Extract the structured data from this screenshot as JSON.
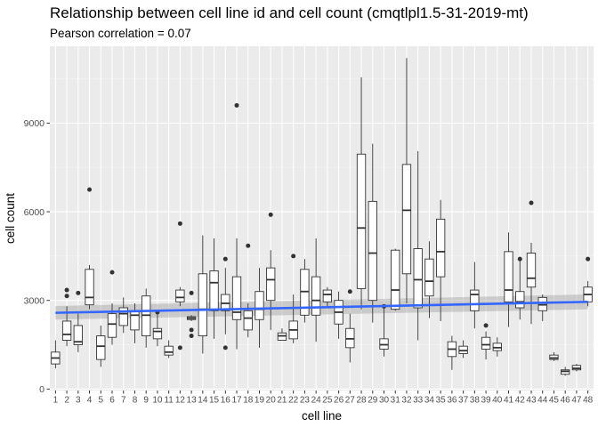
{
  "title": "Relationship between cell line id and cell count (cmqtlpl1.5-31-2019-mt)",
  "subtitle": "Pearson correlation = 0.07",
  "chart_data": {
    "type": "boxplot",
    "title": "Relationship between cell line id and cell count (cmqtlpl1.5-31-2019-mt)",
    "subtitle": "Pearson correlation = 0.07",
    "xlabel": "cell line",
    "ylabel": "cell count",
    "ylim": [
      -50,
      11600
    ],
    "y_ticks": [
      0,
      3000,
      6000,
      9000
    ],
    "grid": true,
    "panel_background": "#EBEBEB",
    "trend": {
      "method": "lm",
      "color": "#3366FF",
      "start": [
        1,
        2580
      ],
      "end": [
        48,
        2950
      ],
      "se_band": 230
    },
    "categories": [
      "1",
      "2",
      "3",
      "4",
      "5",
      "6",
      "7",
      "8",
      "9",
      "10",
      "11",
      "12",
      "13",
      "14",
      "15",
      "16",
      "17",
      "18",
      "19",
      "20",
      "21",
      "22",
      "23",
      "24",
      "25",
      "26",
      "27",
      "28",
      "29",
      "30",
      "31",
      "32",
      "33",
      "34",
      "35",
      "36",
      "37",
      "38",
      "39",
      "40",
      "41",
      "42",
      "43",
      "44",
      "45",
      "46",
      "47",
      "48"
    ],
    "boxes": [
      {
        "x": "1",
        "min": 700,
        "q1": 850,
        "median": 1050,
        "q3": 1250,
        "max": 1650,
        "outliers": []
      },
      {
        "x": "2",
        "min": 1450,
        "q1": 1650,
        "median": 1850,
        "q3": 2300,
        "max": 2800,
        "outliers": [
          3150,
          3350
        ]
      },
      {
        "x": "3",
        "min": 1250,
        "q1": 1500,
        "median": 1600,
        "q3": 2150,
        "max": 2550,
        "outliers": [
          3250
        ]
      },
      {
        "x": "4",
        "min": 2700,
        "q1": 2850,
        "median": 3100,
        "q3": 4050,
        "max": 4200,
        "outliers": [
          6750
        ]
      },
      {
        "x": "5",
        "min": 750,
        "q1": 1000,
        "median": 1450,
        "q3": 1800,
        "max": 2150,
        "outliers": []
      },
      {
        "x": "6",
        "min": 1500,
        "q1": 1750,
        "median": 2200,
        "q3": 2550,
        "max": 2900,
        "outliers": [
          3950
        ]
      },
      {
        "x": "7",
        "min": 1900,
        "q1": 2150,
        "median": 2550,
        "q3": 2750,
        "max": 3100,
        "outliers": []
      },
      {
        "x": "8",
        "min": 1550,
        "q1": 2000,
        "median": 2500,
        "q3": 2650,
        "max": 2900,
        "outliers": []
      },
      {
        "x": "9",
        "min": 1400,
        "q1": 1800,
        "median": 2500,
        "q3": 3150,
        "max": 3400,
        "outliers": []
      },
      {
        "x": "10",
        "min": 1450,
        "q1": 1700,
        "median": 1950,
        "q3": 2050,
        "max": 2600,
        "outliers": [
          2600
        ]
      },
      {
        "x": "11",
        "min": 1050,
        "q1": 1150,
        "median": 1250,
        "q3": 1450,
        "max": 1650,
        "outliers": []
      },
      {
        "x": "12",
        "min": 2800,
        "q1": 2950,
        "median": 3100,
        "q3": 3350,
        "max": 3450,
        "outliers": [
          5600,
          1400
        ]
      },
      {
        "x": "13",
        "min": 2300,
        "q1": 2350,
        "median": 2400,
        "q3": 2450,
        "max": 2500,
        "outliers": [
          3250,
          2000,
          1800
        ]
      },
      {
        "x": "14",
        "min": 1200,
        "q1": 1800,
        "median": 2700,
        "q3": 3900,
        "max": 5200,
        "outliers": []
      },
      {
        "x": "15",
        "min": 1700,
        "q1": 2650,
        "median": 3600,
        "q3": 4000,
        "max": 5100,
        "outliers": []
      },
      {
        "x": "16",
        "min": 1850,
        "q1": 2650,
        "median": 2900,
        "q3": 3200,
        "max": 4100,
        "outliers": [
          4400,
          1400
        ]
      },
      {
        "x": "17",
        "min": 1350,
        "q1": 2350,
        "median": 2600,
        "q3": 3800,
        "max": 5100,
        "outliers": [
          9600
        ]
      },
      {
        "x": "18",
        "min": 1750,
        "q1": 2000,
        "median": 2400,
        "q3": 2650,
        "max": 2900,
        "outliers": [
          4850
        ]
      },
      {
        "x": "19",
        "min": 1400,
        "q1": 2350,
        "median": 2700,
        "q3": 3300,
        "max": 4100,
        "outliers": []
      },
      {
        "x": "20",
        "min": 2000,
        "q1": 3000,
        "median": 3700,
        "q3": 4100,
        "max": 4700,
        "outliers": [
          5900
        ]
      },
      {
        "x": "21",
        "min": 1650,
        "q1": 1650,
        "median": 1800,
        "q3": 1900,
        "max": 2050,
        "outliers": []
      },
      {
        "x": "22",
        "min": 1550,
        "q1": 1700,
        "median": 2000,
        "q3": 2300,
        "max": 3200,
        "outliers": [
          4500
        ]
      },
      {
        "x": "23",
        "min": 2250,
        "q1": 2500,
        "median": 3300,
        "q3": 4050,
        "max": 4400,
        "outliers": []
      },
      {
        "x": "24",
        "min": 1600,
        "q1": 2500,
        "median": 3000,
        "q3": 3800,
        "max": 5100,
        "outliers": []
      },
      {
        "x": "25",
        "min": 2800,
        "q1": 2950,
        "median": 3200,
        "q3": 3350,
        "max": 3450,
        "outliers": []
      },
      {
        "x": "26",
        "min": 1700,
        "q1": 2200,
        "median": 2600,
        "q3": 3000,
        "max": 3300,
        "outliers": []
      },
      {
        "x": "27",
        "min": 900,
        "q1": 1400,
        "median": 1700,
        "q3": 2050,
        "max": 2550,
        "outliers": [
          3300
        ]
      },
      {
        "x": "28",
        "min": 2700,
        "q1": 3400,
        "median": 5450,
        "q3": 7950,
        "max": 10550,
        "outliers": []
      },
      {
        "x": "29",
        "min": 2250,
        "q1": 3000,
        "median": 4600,
        "q3": 6350,
        "max": 8300,
        "outliers": []
      },
      {
        "x": "30",
        "min": 1100,
        "q1": 1350,
        "median": 1500,
        "q3": 1700,
        "max": 2800,
        "outliers": [
          2800
        ]
      },
      {
        "x": "31",
        "min": 2650,
        "q1": 2700,
        "median": 3350,
        "q3": 4700,
        "max": 4750,
        "outliers": []
      },
      {
        "x": "32",
        "min": 2900,
        "q1": 3900,
        "median": 6050,
        "q3": 7600,
        "max": 11200,
        "outliers": []
      },
      {
        "x": "33",
        "min": 1650,
        "q1": 2750,
        "median": 3700,
        "q3": 4750,
        "max": 8050,
        "outliers": []
      },
      {
        "x": "34",
        "min": 2400,
        "q1": 3150,
        "median": 3650,
        "q3": 4400,
        "max": 5000,
        "outliers": []
      },
      {
        "x": "35",
        "min": 2300,
        "q1": 3800,
        "median": 4650,
        "q3": 5750,
        "max": 6400,
        "outliers": []
      },
      {
        "x": "36",
        "min": 650,
        "q1": 1100,
        "median": 1350,
        "q3": 1600,
        "max": 1800,
        "outliers": []
      },
      {
        "x": "37",
        "min": 1050,
        "q1": 1200,
        "median": 1300,
        "q3": 1450,
        "max": 1650,
        "outliers": []
      },
      {
        "x": "38",
        "min": 2050,
        "q1": 2650,
        "median": 3200,
        "q3": 3350,
        "max": 4300,
        "outliers": []
      },
      {
        "x": "39",
        "min": 1000,
        "q1": 1350,
        "median": 1500,
        "q3": 1750,
        "max": 1950,
        "outliers": [
          2150
        ]
      },
      {
        "x": "40",
        "min": 1100,
        "q1": 1300,
        "median": 1400,
        "q3": 1550,
        "max": 1750,
        "outliers": []
      },
      {
        "x": "41",
        "min": 2100,
        "q1": 2950,
        "median": 3350,
        "q3": 4650,
        "max": 5300,
        "outliers": []
      },
      {
        "x": "42",
        "min": 2350,
        "q1": 2750,
        "median": 2950,
        "q3": 3300,
        "max": 4400,
        "outliers": [
          4400
        ]
      },
      {
        "x": "43",
        "min": 2200,
        "q1": 3450,
        "median": 3750,
        "q3": 4600,
        "max": 4950,
        "outliers": [
          6300
        ]
      },
      {
        "x": "44",
        "min": 2300,
        "q1": 2650,
        "median": 2850,
        "q3": 3100,
        "max": 3200,
        "outliers": []
      },
      {
        "x": "45",
        "min": 950,
        "q1": 1000,
        "median": 1050,
        "q3": 1150,
        "max": 1250,
        "outliers": []
      },
      {
        "x": "46",
        "min": 450,
        "q1": 500,
        "median": 600,
        "q3": 650,
        "max": 750,
        "outliers": []
      },
      {
        "x": "47",
        "min": 600,
        "q1": 650,
        "median": 700,
        "q3": 800,
        "max": 850,
        "outliers": []
      },
      {
        "x": "48",
        "min": 2800,
        "q1": 2950,
        "median": 3200,
        "q3": 3450,
        "max": 3650,
        "outliers": [
          4400
        ]
      }
    ]
  }
}
